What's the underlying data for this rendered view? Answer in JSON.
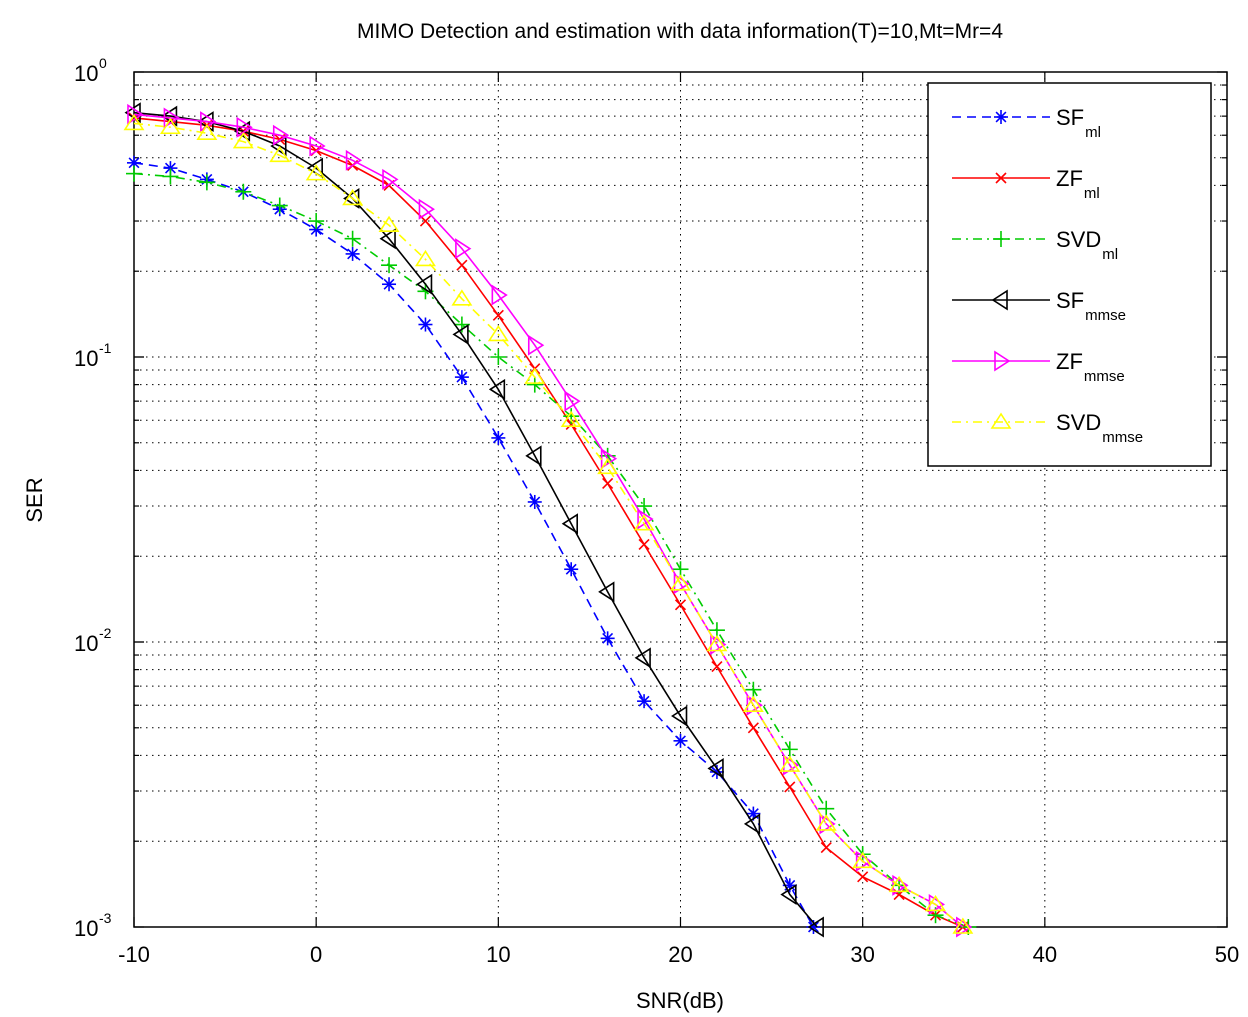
{
  "chart_data": {
    "type": "line",
    "title": "MIMO Detection and estimation with data information(T)=10,Mt=Mr=4",
    "xlabel": "SNR(dB)",
    "ylabel": "SER",
    "xlim": [
      -10,
      50
    ],
    "ylim": [
      0.001,
      1
    ],
    "yscale": "log",
    "grid": true,
    "legend_position": "top-right",
    "x_ticks": [
      "-10",
      "0",
      "10",
      "20",
      "30",
      "40",
      "50"
    ],
    "y_ticks": [
      {
        "base": "10",
        "exp": "0",
        "value": 1
      },
      {
        "base": "10",
        "exp": "-1",
        "value": 0.1
      },
      {
        "base": "10",
        "exp": "-2",
        "value": 0.01
      },
      {
        "base": "10",
        "exp": "-3",
        "value": 0.001
      }
    ],
    "series": [
      {
        "name": "SF",
        "sub": "ml",
        "color": "#0000ff",
        "dash": "dashed",
        "marker": "asterisk",
        "x": [
          -10,
          -8,
          -6,
          -4,
          -2,
          0,
          2,
          4,
          6,
          8,
          10,
          12,
          14,
          16,
          18,
          20,
          22,
          24,
          26,
          27.3
        ],
        "y": [
          0.48,
          0.46,
          0.42,
          0.38,
          0.33,
          0.28,
          0.23,
          0.18,
          0.13,
          0.085,
          0.052,
          0.031,
          0.018,
          0.0103,
          0.0062,
          0.0045,
          0.0035,
          0.0025,
          0.0014,
          0.001
        ]
      },
      {
        "name": "ZF",
        "sub": "ml",
        "color": "#ff0000",
        "dash": "solid",
        "marker": "x",
        "x": [
          -10,
          -8,
          -6,
          -4,
          -2,
          0,
          2,
          4,
          6,
          8,
          10,
          12,
          14,
          16,
          18,
          20,
          22,
          24,
          26,
          28,
          30,
          32,
          34,
          35.5
        ],
        "y": [
          0.69,
          0.67,
          0.65,
          0.62,
          0.58,
          0.53,
          0.47,
          0.4,
          0.3,
          0.21,
          0.14,
          0.091,
          0.058,
          0.036,
          0.022,
          0.0135,
          0.0082,
          0.005,
          0.0031,
          0.0019,
          0.0015,
          0.0013,
          0.0011,
          0.001
        ]
      },
      {
        "name": "SVD",
        "sub": "ml",
        "color": "#00cc00",
        "dash": "dashdot",
        "marker": "plus",
        "x": [
          -10,
          -8,
          -6,
          -4,
          -2,
          0,
          2,
          4,
          6,
          8,
          10,
          12,
          14,
          16,
          18,
          20,
          22,
          24,
          26,
          28,
          30,
          32,
          34,
          35.8
        ],
        "y": [
          0.44,
          0.43,
          0.41,
          0.38,
          0.34,
          0.3,
          0.26,
          0.21,
          0.17,
          0.13,
          0.1,
          0.08,
          0.062,
          0.045,
          0.03,
          0.018,
          0.011,
          0.0068,
          0.0042,
          0.0026,
          0.0018,
          0.0014,
          0.0011,
          0.001
        ]
      },
      {
        "name": "SF",
        "sub": "mmse",
        "color": "#000000",
        "dash": "solid",
        "marker": "triangle-left",
        "x": [
          -10,
          -8,
          -6,
          -4,
          -2,
          0,
          2,
          4,
          6,
          8,
          10,
          12,
          14,
          16,
          18,
          20,
          22,
          24,
          26,
          27.5
        ],
        "y": [
          0.72,
          0.7,
          0.67,
          0.62,
          0.55,
          0.46,
          0.36,
          0.26,
          0.18,
          0.12,
          0.077,
          0.045,
          0.026,
          0.015,
          0.0088,
          0.0055,
          0.0036,
          0.0023,
          0.0013,
          0.001
        ]
      },
      {
        "name": "ZF",
        "sub": "mmse",
        "color": "#ff00ff",
        "dash": "solid",
        "marker": "triangle-right",
        "x": [
          -10,
          -8,
          -6,
          -4,
          -2,
          0,
          2,
          4,
          6,
          8,
          10,
          12,
          14,
          16,
          18,
          20,
          22,
          24,
          26,
          28,
          30,
          32,
          34,
          35.5
        ],
        "y": [
          0.71,
          0.69,
          0.67,
          0.64,
          0.6,
          0.55,
          0.49,
          0.42,
          0.33,
          0.24,
          0.165,
          0.11,
          0.07,
          0.044,
          0.027,
          0.016,
          0.0098,
          0.006,
          0.0037,
          0.0023,
          0.0017,
          0.0014,
          0.0012,
          0.001
        ]
      },
      {
        "name": "SVD",
        "sub": "mmse",
        "color": "#ffff00",
        "dash": "dashdot",
        "marker": "triangle-up",
        "x": [
          -10,
          -8,
          -6,
          -4,
          -2,
          0,
          2,
          4,
          6,
          8,
          10,
          12,
          14,
          16,
          18,
          20,
          22,
          24,
          26,
          28,
          30,
          32,
          34,
          35.5
        ],
        "y": [
          0.66,
          0.64,
          0.61,
          0.57,
          0.51,
          0.44,
          0.36,
          0.29,
          0.22,
          0.16,
          0.12,
          0.085,
          0.06,
          0.041,
          0.026,
          0.016,
          0.0098,
          0.006,
          0.0037,
          0.0023,
          0.0017,
          0.0014,
          0.0012,
          0.001
        ]
      }
    ]
  }
}
